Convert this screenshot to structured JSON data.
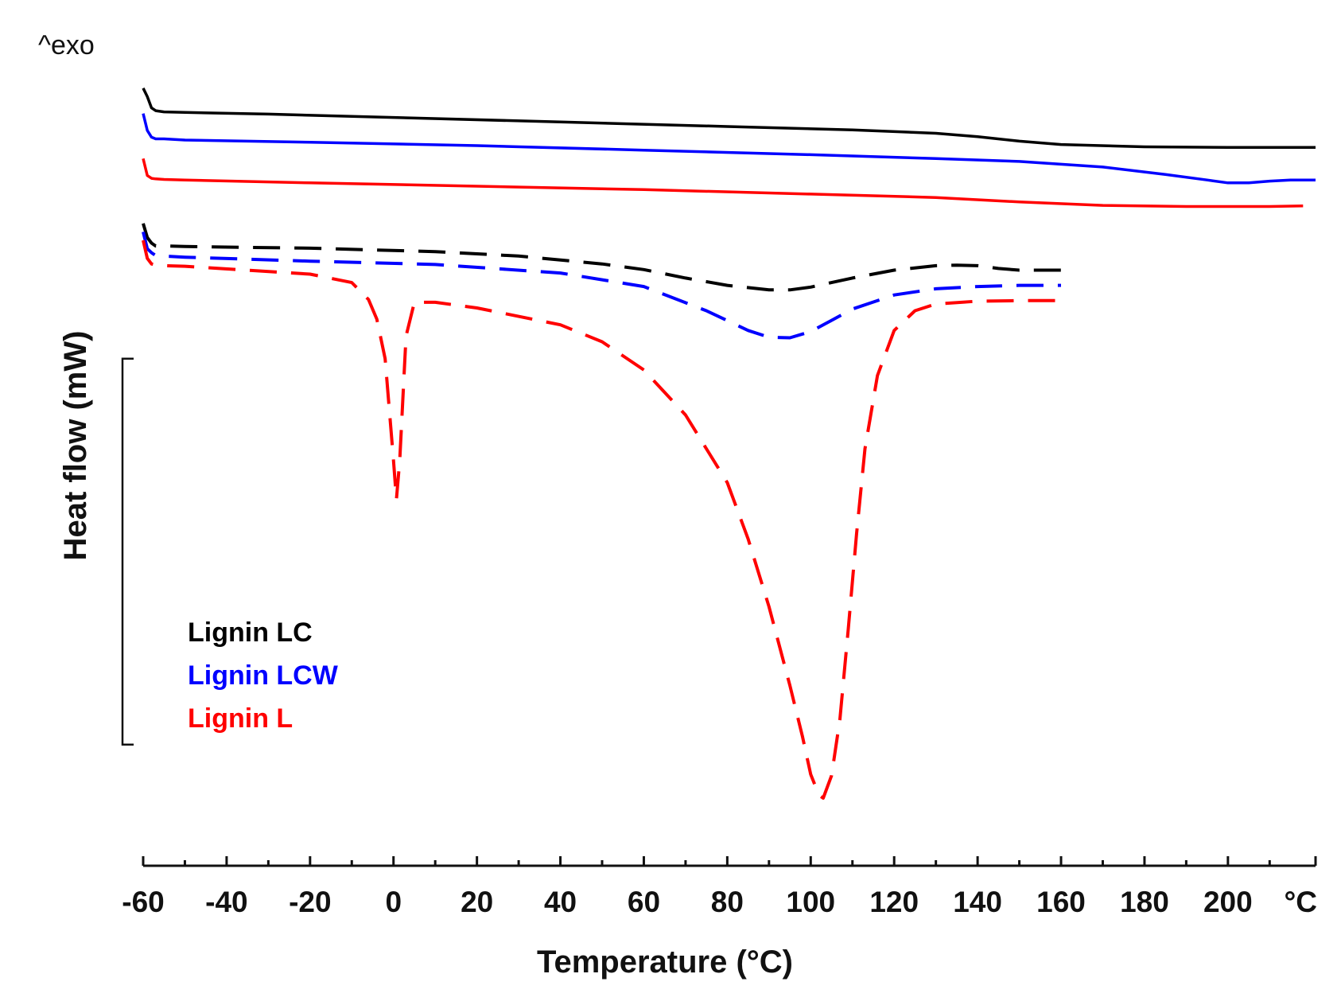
{
  "chart_data": {
    "type": "line",
    "title": "",
    "xlabel": "Temperature (°C)",
    "ylabel": "Heat flow (mW)",
    "exo_label": "^exo",
    "x_unit_label": "°C",
    "xlim": [
      -60,
      221
    ],
    "xticks": [
      -60,
      -40,
      -20,
      0,
      20,
      40,
      60,
      80,
      100,
      120,
      140,
      160,
      180,
      200
    ],
    "xtick_labels": [
      "-60",
      "-40",
      "-20",
      "0",
      "20",
      "40",
      "60",
      "80",
      "100",
      "120",
      "140",
      "160",
      "180",
      "200"
    ],
    "ylim": [
      -2.8,
      12.0
    ],
    "y_ticks_shown": false,
    "scale_bar": [
      6.2,
      -0.65
    ],
    "grid": false,
    "legend_position": "lower-left",
    "legend": [
      "Lignin LC",
      "Lignin LCW",
      "Lignin L"
    ],
    "series": [
      {
        "name": "Lignin LC",
        "label": "Lignin LC",
        "color": "#000000",
        "dash": "solid",
        "group": "upper",
        "x": [
          -60,
          -59,
          -58,
          -57,
          -55,
          -50,
          -30,
          0,
          40,
          80,
          110,
          130,
          140,
          150,
          160,
          180,
          200,
          221
        ],
        "y": [
          11.0,
          10.85,
          10.65,
          10.6,
          10.58,
          10.57,
          10.54,
          10.48,
          10.4,
          10.32,
          10.26,
          10.2,
          10.14,
          10.06,
          10.0,
          9.96,
          9.95,
          9.95
        ]
      },
      {
        "name": "Lignin LCW",
        "label": "Lignin LCW",
        "color": "#0000ff",
        "dash": "solid",
        "group": "upper",
        "x": [
          -60,
          -59,
          -58,
          -57,
          -55,
          -50,
          -20,
          20,
          60,
          100,
          130,
          150,
          170,
          185,
          195,
          200,
          205,
          210,
          215,
          221
        ],
        "y": [
          10.55,
          10.25,
          10.13,
          10.1,
          10.1,
          10.08,
          10.04,
          9.98,
          9.9,
          9.82,
          9.75,
          9.7,
          9.6,
          9.47,
          9.37,
          9.32,
          9.32,
          9.35,
          9.37,
          9.37
        ]
      },
      {
        "name": "Lignin L",
        "label": "Lignin L",
        "color": "#ff0000",
        "dash": "solid",
        "group": "upper",
        "x": [
          -60,
          -59,
          -58,
          -57,
          -55,
          -50,
          -20,
          20,
          60,
          100,
          130,
          150,
          170,
          190,
          210,
          218
        ],
        "y": [
          9.75,
          9.45,
          9.4,
          9.39,
          9.38,
          9.37,
          9.32,
          9.26,
          9.2,
          9.12,
          9.06,
          8.98,
          8.92,
          8.9,
          8.9,
          8.91
        ]
      },
      {
        "name": "Lignin LC",
        "label": "Lignin LC",
        "color": "#000000",
        "dash": "dashed",
        "group": "lower",
        "x": [
          -60,
          -59,
          -58,
          -57,
          -55,
          -50,
          -20,
          10,
          30,
          50,
          60,
          70,
          80,
          90,
          95,
          100,
          110,
          120,
          130,
          135,
          140,
          145,
          150,
          155,
          160
        ],
        "y": [
          8.6,
          8.35,
          8.25,
          8.2,
          8.2,
          8.19,
          8.16,
          8.1,
          8.02,
          7.88,
          7.78,
          7.63,
          7.5,
          7.42,
          7.42,
          7.47,
          7.63,
          7.77,
          7.85,
          7.86,
          7.85,
          7.8,
          7.77,
          7.77,
          7.77
        ]
      },
      {
        "name": "Lignin LCW",
        "label": "Lignin LCW",
        "color": "#0000ff",
        "dash": "dashed",
        "group": "lower",
        "x": [
          -60,
          -59,
          -58,
          -57,
          -55,
          -50,
          -20,
          10,
          40,
          60,
          75,
          85,
          90,
          95,
          100,
          105,
          110,
          120,
          130,
          140,
          150,
          160
        ],
        "y": [
          8.45,
          8.15,
          8.08,
          8.03,
          8.02,
          8.0,
          7.93,
          7.87,
          7.72,
          7.48,
          7.05,
          6.7,
          6.58,
          6.57,
          6.68,
          6.88,
          7.08,
          7.33,
          7.44,
          7.48,
          7.5,
          7.5
        ]
      },
      {
        "name": "Lignin L",
        "label": "Lignin L",
        "color": "#ff0000",
        "dash": "dashed",
        "group": "lower",
        "x": [
          -60,
          -59,
          -58,
          -57,
          -55,
          -50,
          -20,
          -10,
          -6,
          -4,
          -2,
          0,
          0.7,
          1.5,
          3,
          5,
          10,
          20,
          40,
          50,
          60,
          70,
          80,
          85,
          90,
          95,
          98,
          100,
          102,
          103,
          105,
          107,
          109,
          111,
          113,
          116,
          120,
          125,
          130,
          140,
          150,
          160
        ],
        "y": [
          8.3,
          7.98,
          7.88,
          7.86,
          7.85,
          7.84,
          7.7,
          7.55,
          7.25,
          6.9,
          6.2,
          4.4,
          3.7,
          4.4,
          6.6,
          7.2,
          7.2,
          7.1,
          6.8,
          6.5,
          6.0,
          5.2,
          4.0,
          3.0,
          1.8,
          0.4,
          -0.5,
          -1.18,
          -1.55,
          -1.6,
          -1.2,
          -0.2,
          1.4,
          3.1,
          4.6,
          5.9,
          6.7,
          7.05,
          7.17,
          7.22,
          7.23,
          7.23
        ]
      }
    ]
  }
}
